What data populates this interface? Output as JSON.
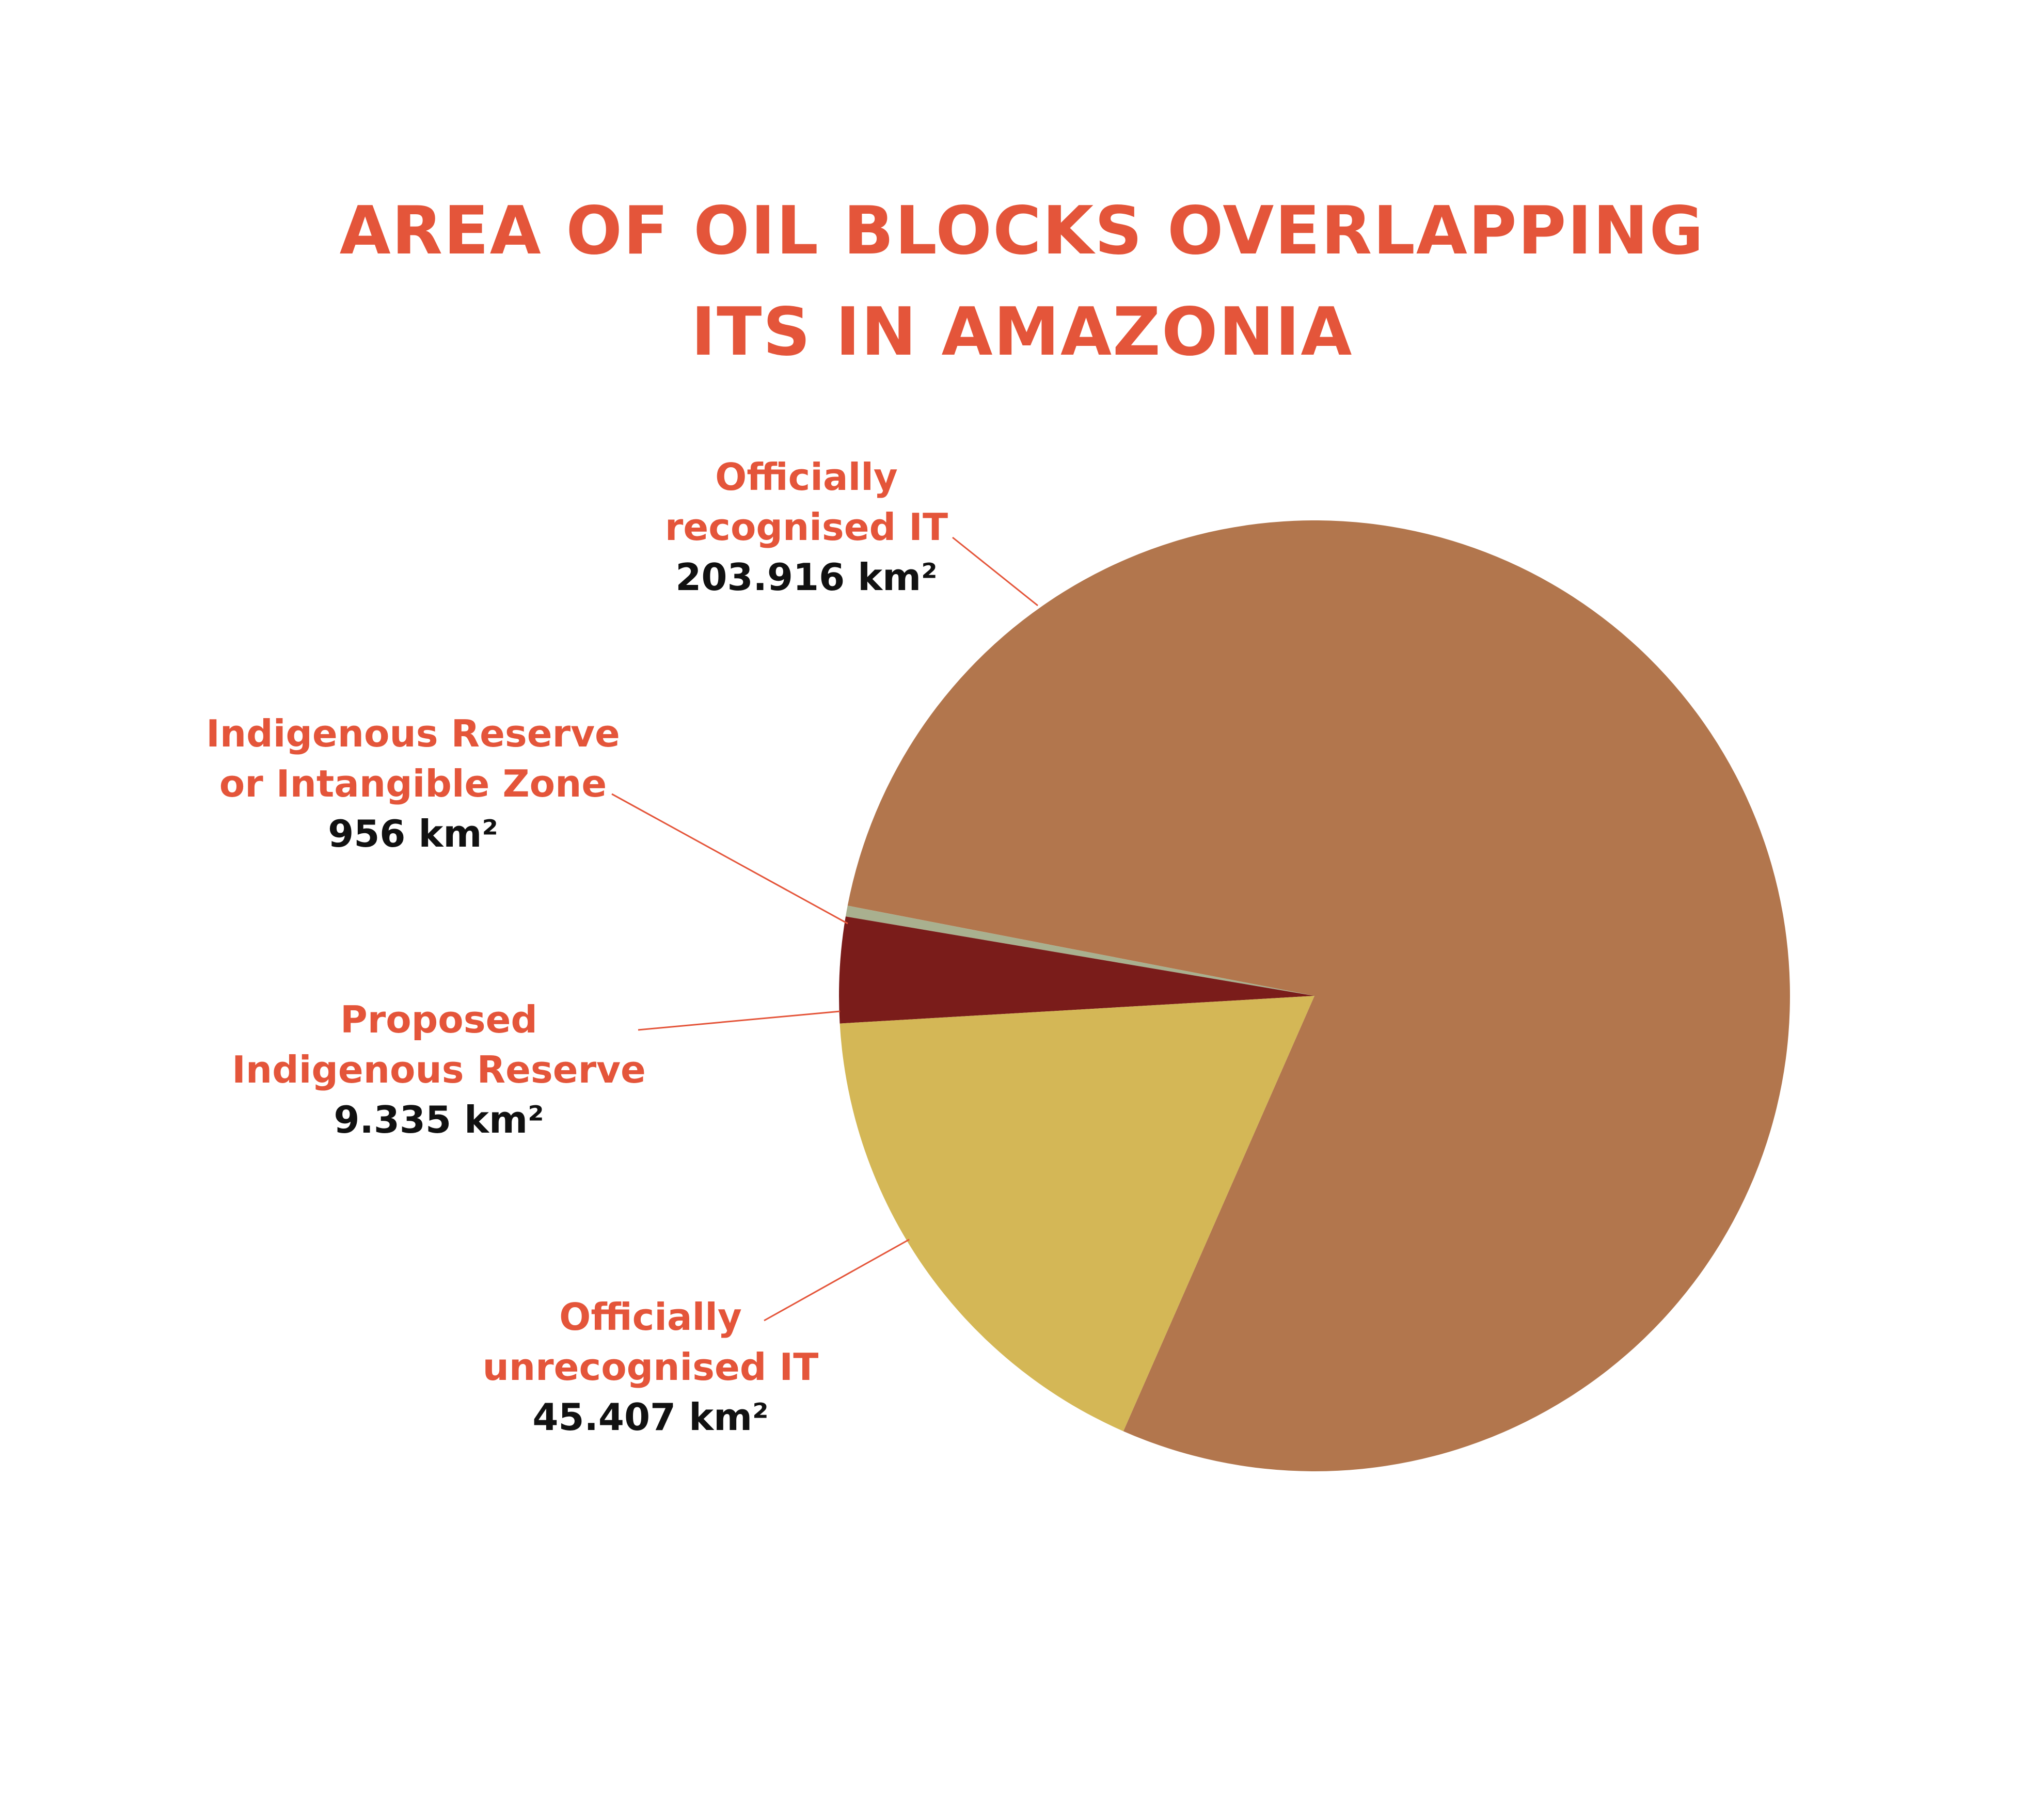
{
  "chart_data": {
    "type": "pie",
    "title": "AREA OF OIL BLOCKS OVERLAPPING\nITS IN AMAZONIA",
    "categories": [
      "Officially\nrecognised IT",
      "Indigenous Reserve\nor Intangible Zone",
      "Proposed\nIndigenous Reserve",
      "Officially\nunrecognised IT"
    ],
    "values": [
      203916,
      956,
      9335,
      45407
    ],
    "value_labels": [
      "203.916 km²",
      "956 km²",
      "9.335 km²",
      "45.407 km²"
    ],
    "colors": [
      "#b2764d",
      "#a9b08f",
      "#7a1c1a",
      "#d4b756"
    ]
  }
}
